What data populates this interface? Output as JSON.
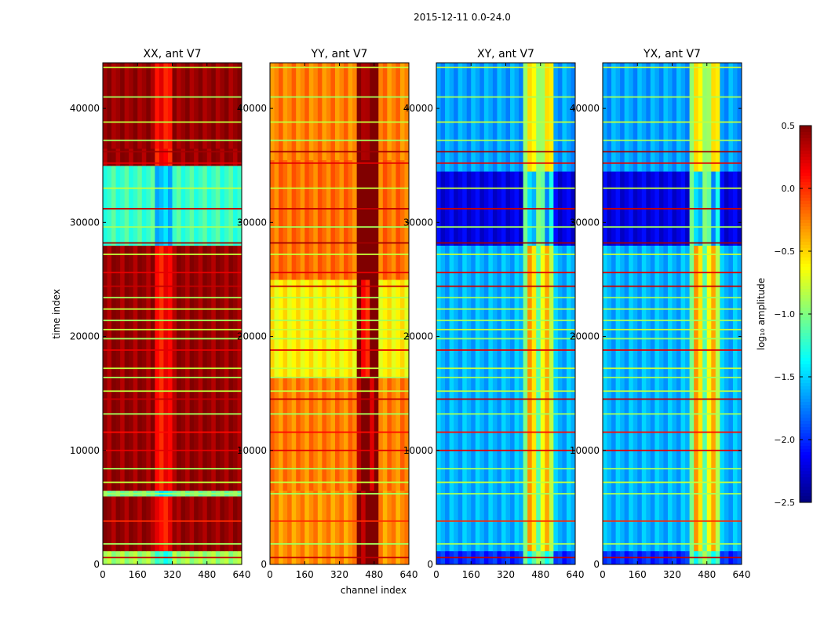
{
  "chart_data": {
    "type": "heatmap",
    "suptitle": "2015-12-11 0.0-24.0",
    "xlabel": "channel index",
    "ylabel": "time index",
    "xlim": [
      0,
      640
    ],
    "ylim": [
      0,
      44000
    ],
    "x_ticks": [
      0,
      160,
      320,
      480,
      640
    ],
    "y_ticks": [
      0,
      10000,
      20000,
      30000,
      40000
    ],
    "panels": [
      {
        "title": "XX, ant V7",
        "base": 0.45,
        "band_center": 280,
        "band_width": 40,
        "band_boost": -0.35,
        "rfi_start": 9999,
        "rfi_end": 9999,
        "segments": [
          [
            0,
            1200,
            -0.9
          ],
          [
            1200,
            6000,
            0.45
          ],
          [
            6000,
            6500,
            -1.0
          ],
          [
            6500,
            28000,
            0.45
          ],
          [
            28000,
            35000,
            -1.2
          ],
          [
            35000,
            36500,
            0.45
          ],
          [
            36500,
            44000,
            0.45
          ]
        ]
      },
      {
        "title": "YY, ant V7",
        "base": -0.25,
        "band_center": 9999,
        "band_width": 0,
        "band_boost": 0,
        "rfi_start": 410,
        "rfi_end": 500,
        "segments": [
          [
            0,
            6500,
            -0.3
          ],
          [
            6500,
            16500,
            -0.25
          ],
          [
            16500,
            25000,
            -0.6
          ],
          [
            25000,
            35500,
            -0.2
          ],
          [
            35500,
            44000,
            -0.25
          ]
        ]
      },
      {
        "title": "XY, ant V7",
        "base": -1.6,
        "band_center": 9999,
        "band_width": 0,
        "band_boost": 0,
        "rfi_start": 400,
        "rfi_end": 530,
        "segments": [
          [
            0,
            1200,
            -2.0
          ],
          [
            1200,
            28000,
            -1.6
          ],
          [
            28000,
            34500,
            -2.2
          ],
          [
            34500,
            44000,
            -1.65
          ]
        ]
      },
      {
        "title": "YX, ant V7",
        "base": -1.6,
        "band_center": 9999,
        "band_width": 0,
        "band_boost": 0,
        "rfi_start": 400,
        "rfi_end": 530,
        "segments": [
          [
            0,
            1200,
            -2.0
          ],
          [
            1200,
            28000,
            -1.6
          ],
          [
            28000,
            34500,
            -2.2
          ],
          [
            34500,
            44000,
            -1.65
          ]
        ]
      }
    ],
    "flagged_rows": [
      {
        "t": 600,
        "v": 0.3
      },
      {
        "t": 1800,
        "v": -0.9
      },
      {
        "t": 3800,
        "v": 0.0
      },
      {
        "t": 6200,
        "v": -0.9
      },
      {
        "t": 7200,
        "v": -0.8
      },
      {
        "t": 8400,
        "v": -0.9
      },
      {
        "t": 10000,
        "v": 0.2
      },
      {
        "t": 11600,
        "v": 0.1
      },
      {
        "t": 13200,
        "v": -0.9
      },
      {
        "t": 14500,
        "v": 0.3
      },
      {
        "t": 15200,
        "v": -0.8
      },
      {
        "t": 16400,
        "v": -0.9
      },
      {
        "t": 17200,
        "v": -0.8
      },
      {
        "t": 18800,
        "v": 0.2
      },
      {
        "t": 19800,
        "v": -0.9
      },
      {
        "t": 20600,
        "v": -0.8
      },
      {
        "t": 21400,
        "v": -0.9
      },
      {
        "t": 22400,
        "v": -0.8
      },
      {
        "t": 23400,
        "v": -0.9
      },
      {
        "t": 24400,
        "v": 0.3
      },
      {
        "t": 25600,
        "v": 0.2
      },
      {
        "t": 27200,
        "v": -0.8
      },
      {
        "t": 28200,
        "v": 0.4
      },
      {
        "t": 29600,
        "v": -0.9
      },
      {
        "t": 31200,
        "v": 0.3
      },
      {
        "t": 33000,
        "v": -0.8
      },
      {
        "t": 35200,
        "v": 0.2
      },
      {
        "t": 36200,
        "v": 0.4
      },
      {
        "t": 37200,
        "v": -0.9
      },
      {
        "t": 38800,
        "v": -0.8
      },
      {
        "t": 41000,
        "v": -0.9
      },
      {
        "t": 43600,
        "v": -0.8
      }
    ],
    "colorbar": {
      "label": "log₁₀ amplitude",
      "vmin": -2.5,
      "vmax": 0.5,
      "ticks": [
        "0.5",
        "0.0",
        "−0.5",
        "−1.0",
        "−1.5",
        "−2.0",
        "−2.5"
      ],
      "tick_values": [
        0.5,
        0.0,
        -0.5,
        -1.0,
        -1.5,
        -2.0,
        -2.5
      ]
    }
  }
}
